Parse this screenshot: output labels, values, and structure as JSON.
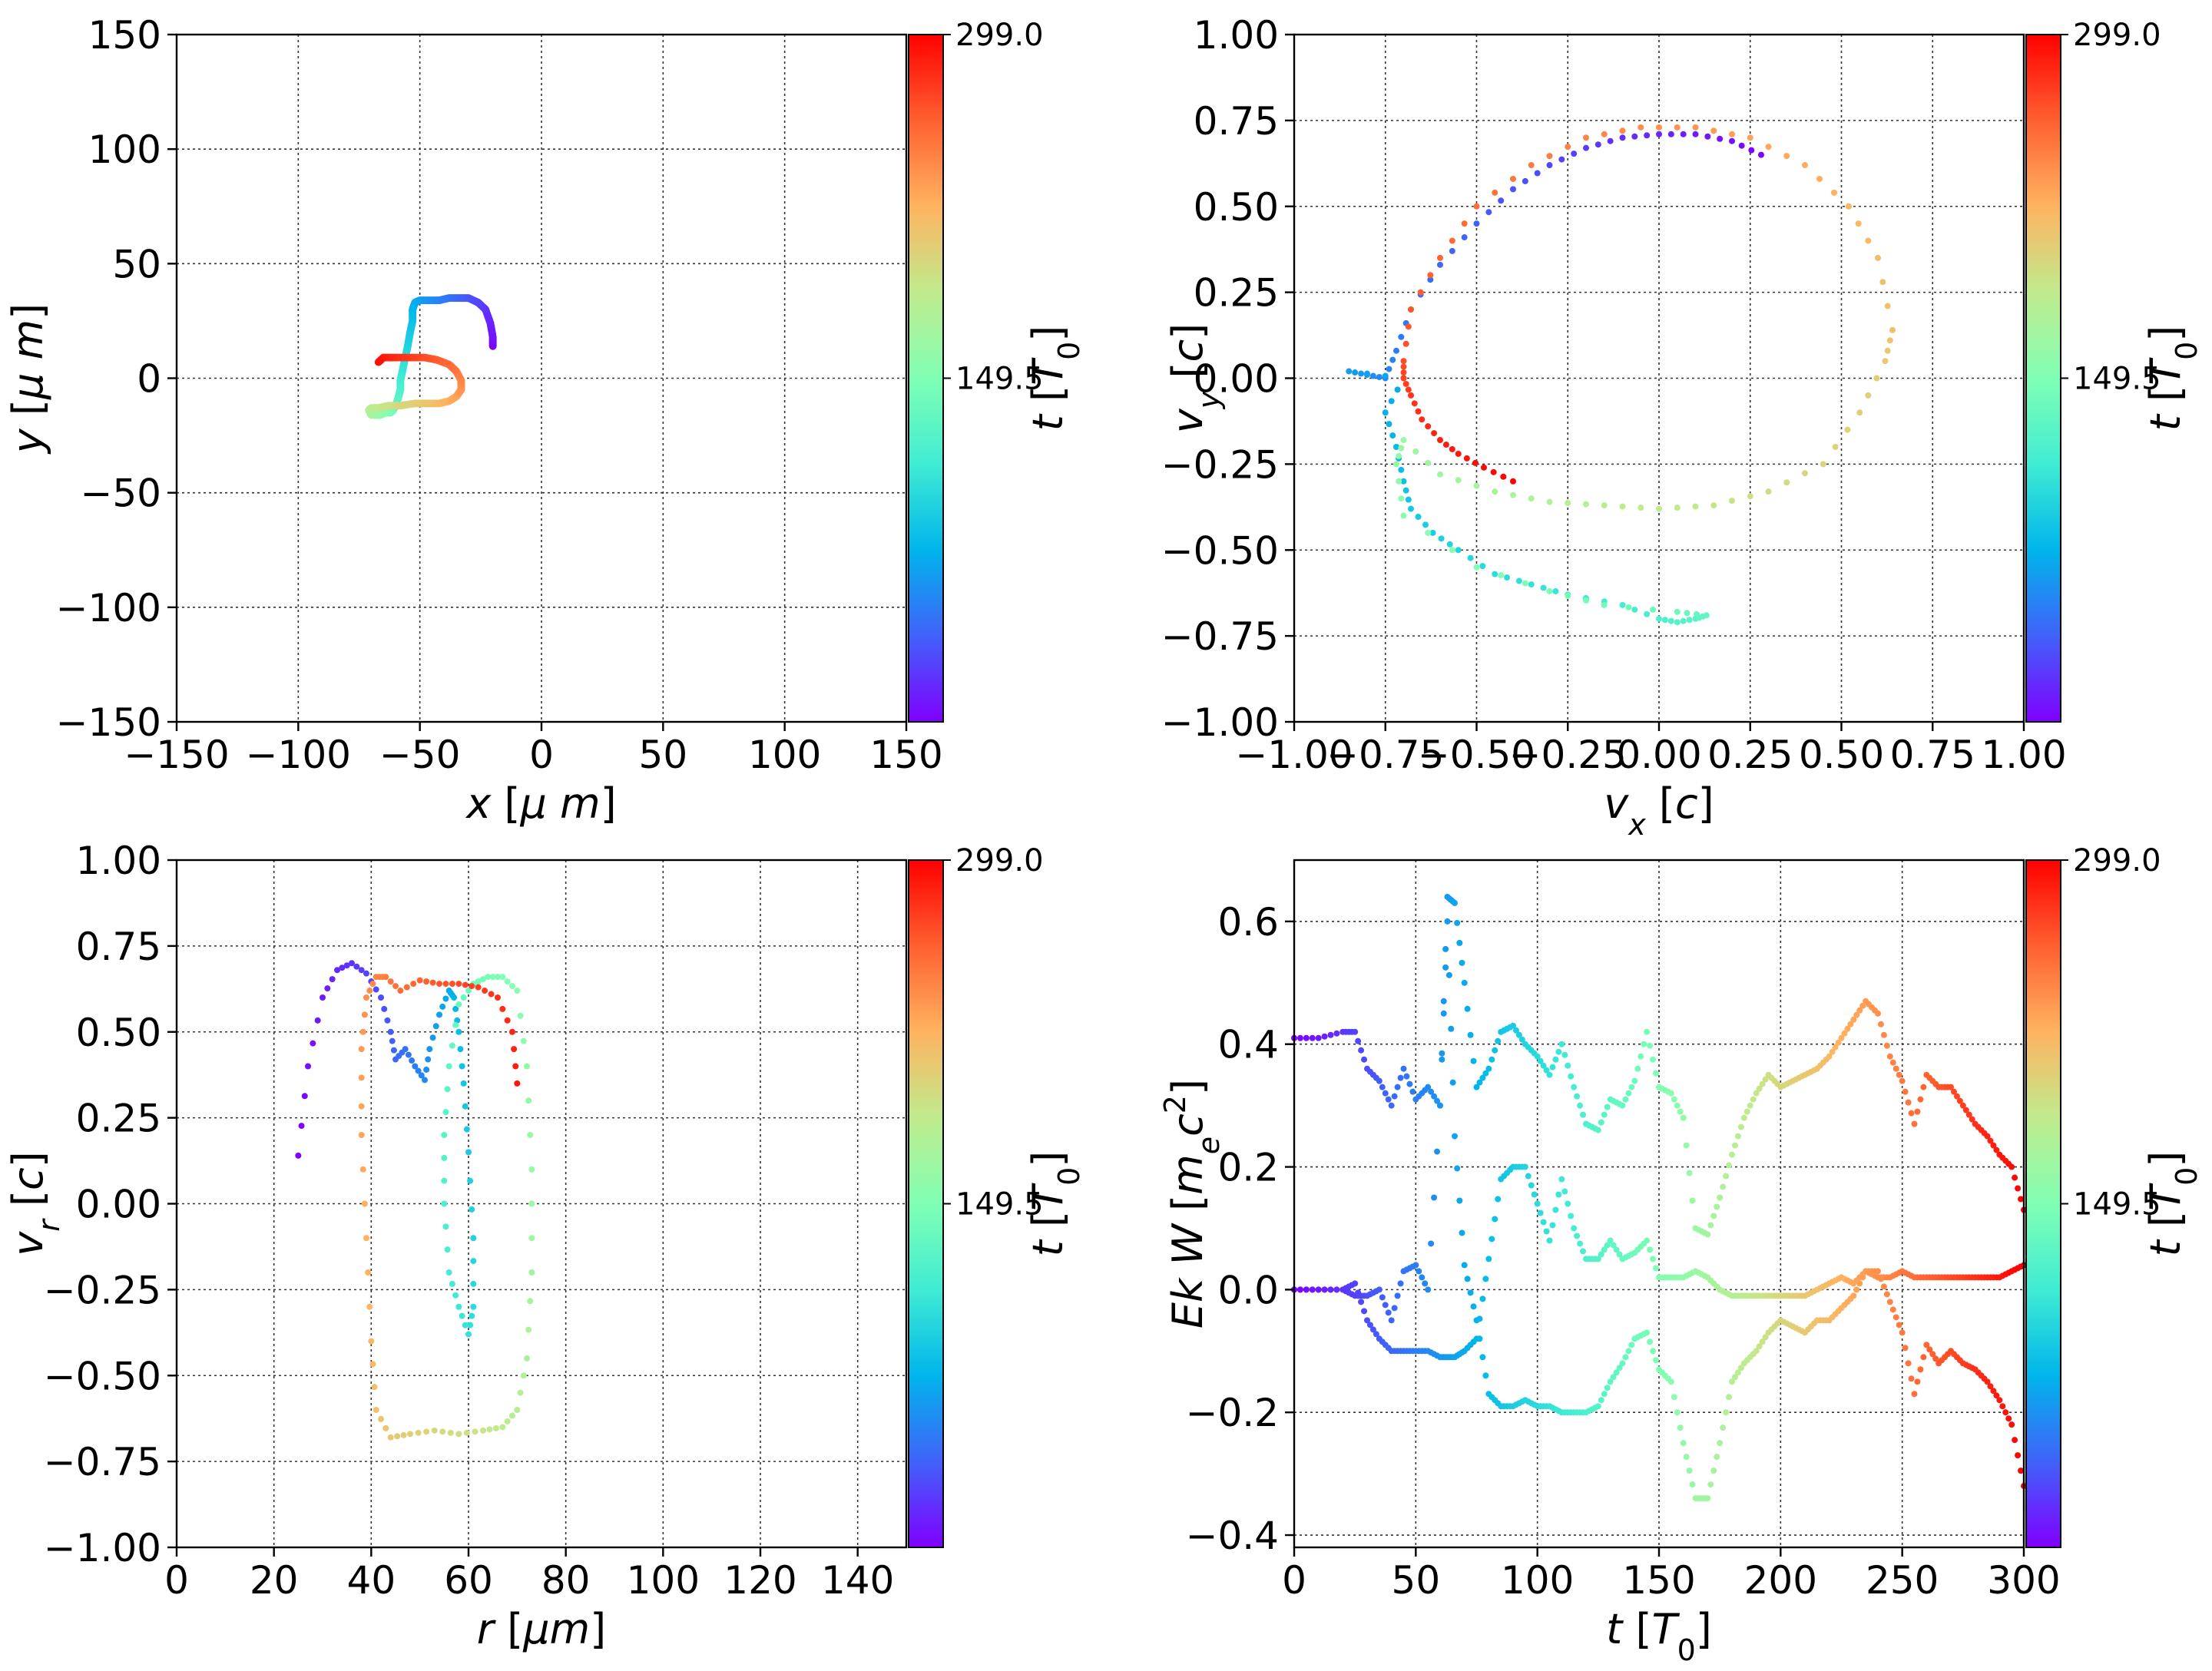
{
  "chart_data": [
    {
      "type": "scatter",
      "xlabel": "x  [μ m]",
      "ylabel": "y  [μ m]",
      "xlim": [
        -150,
        150
      ],
      "ylim": [
        -150,
        150
      ],
      "xticks": [
        "−150",
        "−100",
        "−50",
        "0",
        "50",
        "100",
        "150"
      ],
      "yticks": [
        "−150",
        "−100",
        "−50",
        "0",
        "50",
        "100",
        "150"
      ],
      "grid": true,
      "colorbar": {
        "label": "t [T0]",
        "min": 0,
        "max": 299.0,
        "ticks": [
          "299.0",
          "149.5"
        ],
        "colormap": "rainbow"
      },
      "series": [
        {
          "x": [
            -20,
            -20,
            -21,
            -23,
            -26,
            -30,
            -34,
            -38,
            -42,
            -46,
            -50,
            -52,
            -53,
            -53,
            -54,
            -55,
            -56,
            -57,
            -58,
            -58,
            -59,
            -60,
            -61,
            -62,
            -64,
            -66,
            -68,
            -70,
            -71,
            -70,
            -67,
            -63,
            -58,
            -52,
            -47,
            -42,
            -38,
            -35,
            -33,
            -33,
            -35,
            -38,
            -43,
            -48,
            -54,
            -60,
            -65,
            -67
          ],
          "y": [
            14,
            18,
            24,
            30,
            33,
            35,
            35,
            35,
            34,
            34,
            34,
            33,
            30,
            25,
            20,
            14,
            9,
            4,
            -1,
            -5,
            -9,
            -12,
            -14,
            -15,
            -15,
            -16,
            -16,
            -16,
            -14,
            -13,
            -13,
            -12,
            -12,
            -11,
            -11,
            -11,
            -10,
            -8,
            -5,
            -1,
            3,
            6,
            8,
            9,
            9,
            9,
            9,
            7
          ],
          "t": [
            0,
            6,
            12,
            18,
            25,
            31,
            37,
            43,
            50,
            56,
            62,
            68,
            75,
            81,
            87,
            93,
            100,
            106,
            112,
            118,
            125,
            131,
            137,
            143,
            150,
            156,
            162,
            168,
            175,
            181,
            187,
            193,
            200,
            206,
            212,
            218,
            225,
            231,
            237,
            243,
            250,
            256,
            262,
            268,
            275,
            281,
            287,
            293
          ]
        }
      ]
    },
    {
      "type": "scatter",
      "xlabel": "vx [c]",
      "ylabel": "vy [c]",
      "xlim": [
        -1.0,
        1.0
      ],
      "ylim": [
        -1.0,
        1.0
      ],
      "xticks": [
        "−1.00",
        "−0.75",
        "−0.50",
        "−0.25",
        "0.00",
        "0.25",
        "0.50",
        "0.75",
        "1.00"
      ],
      "yticks": [
        "−1.00",
        "−0.75",
        "−0.50",
        "−0.25",
        "0.00",
        "0.25",
        "0.50",
        "0.75",
        "1.00"
      ],
      "grid": true,
      "colorbar": {
        "label": "t [T0]",
        "min": 0,
        "max": 299.0,
        "ticks": [
          "299.0",
          "149.5"
        ],
        "colormap": "rainbow"
      },
      "series": [
        {
          "x": [
            0.28,
            0.2,
            0.1,
            0.0,
            -0.1,
            -0.2,
            -0.3,
            -0.4,
            -0.5,
            -0.6,
            -0.68,
            -0.72,
            -0.75,
            -0.8,
            -0.85,
            -0.7,
            -0.75,
            -0.72,
            -0.7,
            -0.68,
            -0.62,
            -0.55,
            -0.45,
            -0.35,
            -0.25,
            -0.1,
            0.0,
            0.05,
            0.1,
            0.13,
            0.05,
            -0.15,
            -0.3,
            -0.5,
            -0.7,
            -0.72,
            -0.7,
            -0.6,
            -0.45,
            -0.3,
            -0.15,
            0.0,
            0.15,
            0.3,
            0.45,
            0.55,
            0.62,
            0.64,
            0.6,
            0.52,
            0.4,
            0.25,
            0.1,
            -0.05,
            -0.2,
            -0.35,
            -0.5,
            -0.6,
            -0.68,
            -0.7,
            -0.7,
            -0.68,
            -0.65,
            -0.6,
            -0.55,
            -0.48,
            -0.4
          ],
          "y": [
            0.65,
            0.69,
            0.71,
            0.71,
            0.7,
            0.67,
            0.62,
            0.55,
            0.45,
            0.33,
            0.2,
            0.08,
            0.0,
            0.01,
            0.02,
            0.0,
            -0.1,
            -0.2,
            -0.3,
            -0.38,
            -0.45,
            -0.5,
            -0.57,
            -0.6,
            -0.63,
            -0.66,
            -0.7,
            -0.71,
            -0.7,
            -0.69,
            -0.68,
            -0.66,
            -0.62,
            -0.55,
            -0.4,
            -0.25,
            -0.18,
            -0.28,
            -0.33,
            -0.36,
            -0.37,
            -0.38,
            -0.37,
            -0.33,
            -0.25,
            -0.1,
            0.05,
            0.14,
            0.35,
            0.5,
            0.62,
            0.7,
            0.73,
            0.73,
            0.7,
            0.62,
            0.5,
            0.35,
            0.2,
            0.05,
            0.0,
            -0.05,
            -0.12,
            -0.18,
            -0.22,
            -0.26,
            -0.3
          ],
          "t": [
            0,
            5,
            9,
            14,
            18,
            23,
            27,
            32,
            36,
            41,
            45,
            50,
            55,
            59,
            64,
            68,
            73,
            77,
            82,
            87,
            91,
            96,
            100,
            105,
            109,
            114,
            119,
            123,
            128,
            132,
            137,
            141,
            146,
            150,
            155,
            160,
            164,
            169,
            173,
            178,
            182,
            187,
            191,
            196,
            200,
            205,
            209,
            214,
            218,
            223,
            228,
            232,
            237,
            241,
            246,
            250,
            255,
            259,
            264,
            269,
            273,
            278,
            282,
            287,
            291,
            295,
            299
          ]
        }
      ]
    },
    {
      "type": "scatter",
      "xlabel": "r [μm]",
      "ylabel": "vr [c]",
      "xlim": [
        0,
        150
      ],
      "ylim": [
        -1.0,
        1.0
      ],
      "xticks": [
        "0",
        "20",
        "40",
        "60",
        "80",
        "100",
        "120",
        "140"
      ],
      "yticks": [
        "−1.00",
        "−0.75",
        "−0.50",
        "−0.25",
        "0.00",
        "0.25",
        "0.50",
        "0.75",
        "1.00"
      ],
      "grid": true,
      "colorbar": {
        "label": "t [T0]",
        "min": 0,
        "max": 299.0,
        "ticks": [
          "299.0",
          "149.5"
        ],
        "colormap": "rainbow"
      },
      "series": [
        {
          "x": [
            25,
            27,
            30,
            33,
            36,
            39,
            42,
            44,
            45,
            47,
            49,
            51,
            52,
            54,
            56,
            57,
            58,
            59,
            60,
            61,
            61,
            60,
            58,
            56,
            55,
            55,
            56,
            58,
            61,
            64,
            67,
            70,
            72,
            73,
            73,
            72,
            70,
            67,
            63,
            58,
            53,
            48,
            44,
            41,
            40,
            39,
            38,
            38,
            39,
            41,
            43,
            46,
            50,
            54,
            58,
            62,
            66,
            69,
            70
          ],
          "y": [
            0.14,
            0.4,
            0.6,
            0.68,
            0.7,
            0.67,
            0.6,
            0.5,
            0.42,
            0.45,
            0.4,
            0.36,
            0.45,
            0.55,
            0.62,
            0.6,
            0.5,
            0.35,
            0.15,
            -0.1,
            -0.3,
            -0.38,
            -0.3,
            -0.2,
            0.0,
            0.2,
            0.4,
            0.58,
            0.64,
            0.66,
            0.66,
            0.62,
            0.4,
            0.1,
            -0.2,
            -0.45,
            -0.6,
            -0.65,
            -0.66,
            -0.67,
            -0.66,
            -0.67,
            -0.68,
            -0.6,
            -0.4,
            -0.1,
            0.2,
            0.45,
            0.6,
            0.66,
            0.66,
            0.62,
            0.65,
            0.64,
            0.64,
            0.63,
            0.6,
            0.5,
            0.35
          ],
          "t": [
            0,
            5,
            10,
            15,
            20,
            25,
            30,
            35,
            40,
            45,
            50,
            55,
            60,
            65,
            70,
            75,
            80,
            85,
            90,
            95,
            100,
            105,
            110,
            115,
            120,
            125,
            130,
            135,
            140,
            145,
            150,
            155,
            160,
            165,
            170,
            175,
            180,
            185,
            190,
            195,
            200,
            205,
            210,
            215,
            220,
            225,
            230,
            235,
            240,
            245,
            250,
            255,
            260,
            265,
            270,
            275,
            280,
            285,
            290
          ]
        }
      ]
    },
    {
      "type": "line",
      "xlabel": "t [T0]",
      "ylabel": "Ek W [mec2]",
      "xlim": [
        0,
        300
      ],
      "ylim": [
        -0.42,
        0.7
      ],
      "xticks": [
        "0",
        "50",
        "100",
        "150",
        "200",
        "250",
        "300"
      ],
      "yticks": [
        "−0.4",
        "−0.2",
        "0.0",
        "0.2",
        "0.4",
        "0.6"
      ],
      "grid": true,
      "colorbar": {
        "label": "t [T0]",
        "min": 0,
        "max": 299.0,
        "ticks": [
          "299.0",
          "149.5"
        ],
        "colormap": "rainbow"
      },
      "series": [
        {
          "name": "",
          "x": [
            0,
            10,
            20,
            25,
            30,
            35,
            40,
            45,
            50,
            55,
            60,
            63,
            66,
            70,
            75,
            80,
            85,
            90,
            95,
            100,
            105,
            110,
            115,
            120,
            125,
            130,
            135,
            140,
            145,
            150,
            155,
            160,
            165,
            170,
            175,
            180,
            185,
            190,
            195,
            200,
            205,
            210,
            215,
            220,
            225,
            230,
            235,
            240,
            245,
            250,
            255,
            260,
            265,
            270,
            275,
            280,
            285,
            290,
            295,
            300
          ],
          "y": [
            0.41,
            0.41,
            0.42,
            0.42,
            0.36,
            0.34,
            0.3,
            0.36,
            0.31,
            0.33,
            0.3,
            0.64,
            0.63,
            0.5,
            0.33,
            0.36,
            0.42,
            0.43,
            0.4,
            0.38,
            0.35,
            0.4,
            0.33,
            0.27,
            0.26,
            0.31,
            0.3,
            0.34,
            0.42,
            0.33,
            0.32,
            0.28,
            0.1,
            0.09,
            0.15,
            0.22,
            0.28,
            0.32,
            0.35,
            0.33,
            0.34,
            0.35,
            0.36,
            0.38,
            0.41,
            0.44,
            0.47,
            0.45,
            0.38,
            0.34,
            0.27,
            0.35,
            0.33,
            0.33,
            0.3,
            0.27,
            0.25,
            0.22,
            0.2,
            0.13
          ]
        },
        {
          "name": "",
          "x": [
            0,
            10,
            20,
            25,
            30,
            35,
            40,
            45,
            50,
            55,
            60,
            63,
            66,
            70,
            75,
            80,
            85,
            90,
            95,
            100,
            105,
            110,
            115,
            120,
            125,
            130,
            135,
            140,
            145,
            150,
            155,
            160,
            165,
            170,
            175,
            180,
            185,
            190,
            195,
            200,
            205,
            210,
            215,
            220,
            225,
            230,
            235,
            240,
            245,
            250,
            255,
            260,
            265,
            270,
            275,
            280,
            285,
            290,
            295,
            300
          ],
          "y": [
            0.0,
            0.0,
            0.0,
            -0.01,
            -0.01,
            0.0,
            -0.05,
            0.03,
            0.04,
            0.0,
            0.3,
            0.6,
            0.25,
            0.04,
            -0.05,
            -0.17,
            -0.19,
            -0.19,
            -0.18,
            -0.19,
            -0.19,
            -0.2,
            -0.2,
            -0.2,
            -0.19,
            -0.15,
            -0.12,
            -0.08,
            -0.07,
            -0.13,
            -0.15,
            -0.25,
            -0.34,
            -0.34,
            -0.25,
            -0.15,
            -0.12,
            -0.1,
            -0.07,
            -0.05,
            -0.06,
            -0.07,
            -0.05,
            -0.05,
            -0.03,
            -0.01,
            0.03,
            0.03,
            -0.02,
            -0.07,
            -0.17,
            -0.09,
            -0.12,
            -0.1,
            -0.12,
            -0.13,
            -0.15,
            -0.18,
            -0.22,
            -0.32
          ]
        },
        {
          "name": "",
          "x": [
            0,
            10,
            20,
            25,
            30,
            35,
            40,
            45,
            50,
            55,
            60,
            63,
            66,
            70,
            75,
            80,
            85,
            90,
            95,
            100,
            105,
            110,
            115,
            120,
            125,
            130,
            135,
            140,
            145,
            150,
            155,
            160,
            165,
            170,
            175,
            180,
            185,
            190,
            195,
            200,
            205,
            210,
            215,
            220,
            225,
            230,
            235,
            240,
            245,
            250,
            255,
            260,
            265,
            270,
            275,
            280,
            285,
            290,
            295,
            300
          ],
          "y": [
            0.0,
            0.0,
            0.0,
            0.01,
            -0.05,
            -0.08,
            -0.1,
            -0.1,
            -0.1,
            -0.1,
            -0.11,
            -0.11,
            -0.11,
            -0.1,
            -0.08,
            0.05,
            0.18,
            0.2,
            0.2,
            0.14,
            0.08,
            0.18,
            0.1,
            0.05,
            0.05,
            0.08,
            0.05,
            0.06,
            0.08,
            0.02,
            0.02,
            0.02,
            0.03,
            0.02,
            0.0,
            -0.01,
            -0.01,
            -0.01,
            -0.01,
            -0.01,
            -0.01,
            -0.01,
            0.0,
            0.01,
            0.02,
            0.01,
            0.03,
            0.02,
            0.02,
            0.03,
            0.02,
            0.02,
            0.02,
            0.02,
            0.02,
            0.02,
            0.02,
            0.02,
            0.03,
            0.04
          ]
        }
      ]
    }
  ]
}
